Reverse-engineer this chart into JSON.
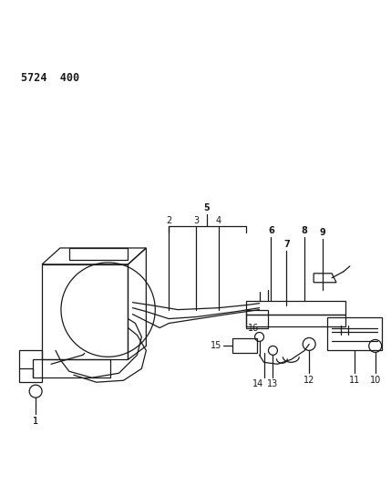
{
  "title": "5724  400",
  "bg_color": "#ffffff",
  "line_color": "#1a1a1a",
  "fig_w": 4.29,
  "fig_h": 5.33,
  "dpi": 100
}
